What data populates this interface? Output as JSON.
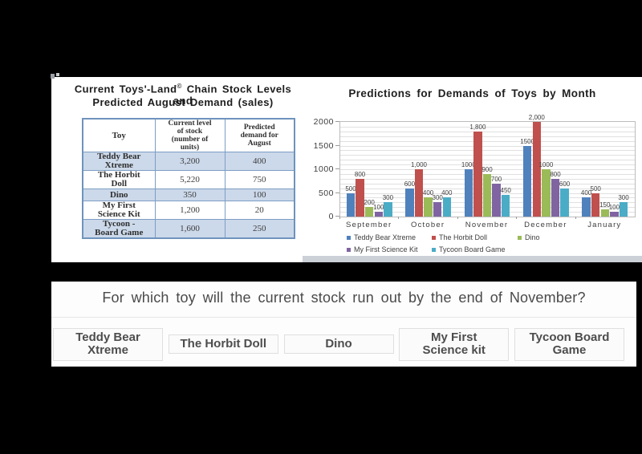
{
  "panel_top": {
    "table_section": {
      "title_line1_prefix": "Current Toys'-Land",
      "title_sup": "©",
      "title_line1_suffix": " Chain Stock Levels and",
      "title_line2": "Predicted August Demand (sales)",
      "table": {
        "headers": [
          "Toy",
          "Current level\nof stock\n(number of\nunits)",
          "Predicted\ndemand for\nAugust"
        ],
        "rows": [
          {
            "toy": "Teddy Bear\nXtreme",
            "stock": "3,200",
            "demand": "400",
            "shaded": true
          },
          {
            "toy": "The Horbit\nDoll",
            "stock": "5,220",
            "demand": "750",
            "shaded": false
          },
          {
            "toy": "Dino",
            "stock": "350",
            "demand": "100",
            "shaded": true
          },
          {
            "toy": "My First\nScience Kit",
            "stock": "1,200",
            "demand": "20",
            "shaded": false
          },
          {
            "toy": "Tycoon -\nBoard Game",
            "stock": "1,600",
            "demand": "250",
            "shaded": true
          }
        ]
      }
    }
  },
  "chart_data": {
    "type": "bar",
    "title": "Predictions for Demands of Toys by Month",
    "categories": [
      "September",
      "October",
      "November",
      "December",
      "January"
    ],
    "series": [
      {
        "name": "Teddy Bear Xtreme",
        "color": "#4f81bd",
        "values": [
          500,
          600,
          1000,
          1500,
          400
        ],
        "labels": [
          "500",
          "600",
          "1000",
          "1500",
          "400"
        ]
      },
      {
        "name": "The Horbit Doll",
        "color": "#c0504d",
        "values": [
          800,
          1000,
          1800,
          2000,
          500
        ],
        "labels": [
          "800",
          "1,000",
          "1,800",
          "2,000",
          "500"
        ]
      },
      {
        "name": "Dino",
        "color": "#9bbb59",
        "values": [
          200,
          400,
          900,
          1000,
          150
        ],
        "labels": [
          "200",
          "400",
          "900",
          "1000",
          "150"
        ]
      },
      {
        "name": "My First Science Kit",
        "color": "#8064a2",
        "values": [
          100,
          300,
          700,
          800,
          100
        ],
        "labels": [
          "100",
          "300",
          "700",
          "800",
          "100"
        ]
      },
      {
        "name": "Tycoon Board Game",
        "color": "#4bacc6",
        "values": [
          300,
          400,
          450,
          600,
          300
        ],
        "labels": [
          "300",
          "400",
          "450",
          "600",
          "300"
        ]
      }
    ],
    "ylim": [
      0,
      2000
    ],
    "yticks": [
      0,
      500,
      1000,
      1500,
      2000
    ],
    "grid_step": 100,
    "grid": true,
    "legend_position": "bottom",
    "legend_rows": [
      [
        0,
        1,
        2
      ],
      [
        3,
        4
      ]
    ]
  },
  "question_panel": {
    "question": "For which toy will the current stock run out by the end of November?",
    "answers": [
      {
        "label": "Teddy Bear Xtreme"
      },
      {
        "label": "The Horbit Doll"
      },
      {
        "label": "Dino"
      },
      {
        "label": "My First Science kit"
      },
      {
        "label": "Tycoon Board Game"
      }
    ]
  },
  "colors": {
    "background": "#000000",
    "panel": "#ffffff",
    "table_row_shaded": "#ccd9ea",
    "table_border": "#7c9dc4",
    "chart_strip": "#cbd1d6",
    "question_text": "#4a4a4a"
  }
}
